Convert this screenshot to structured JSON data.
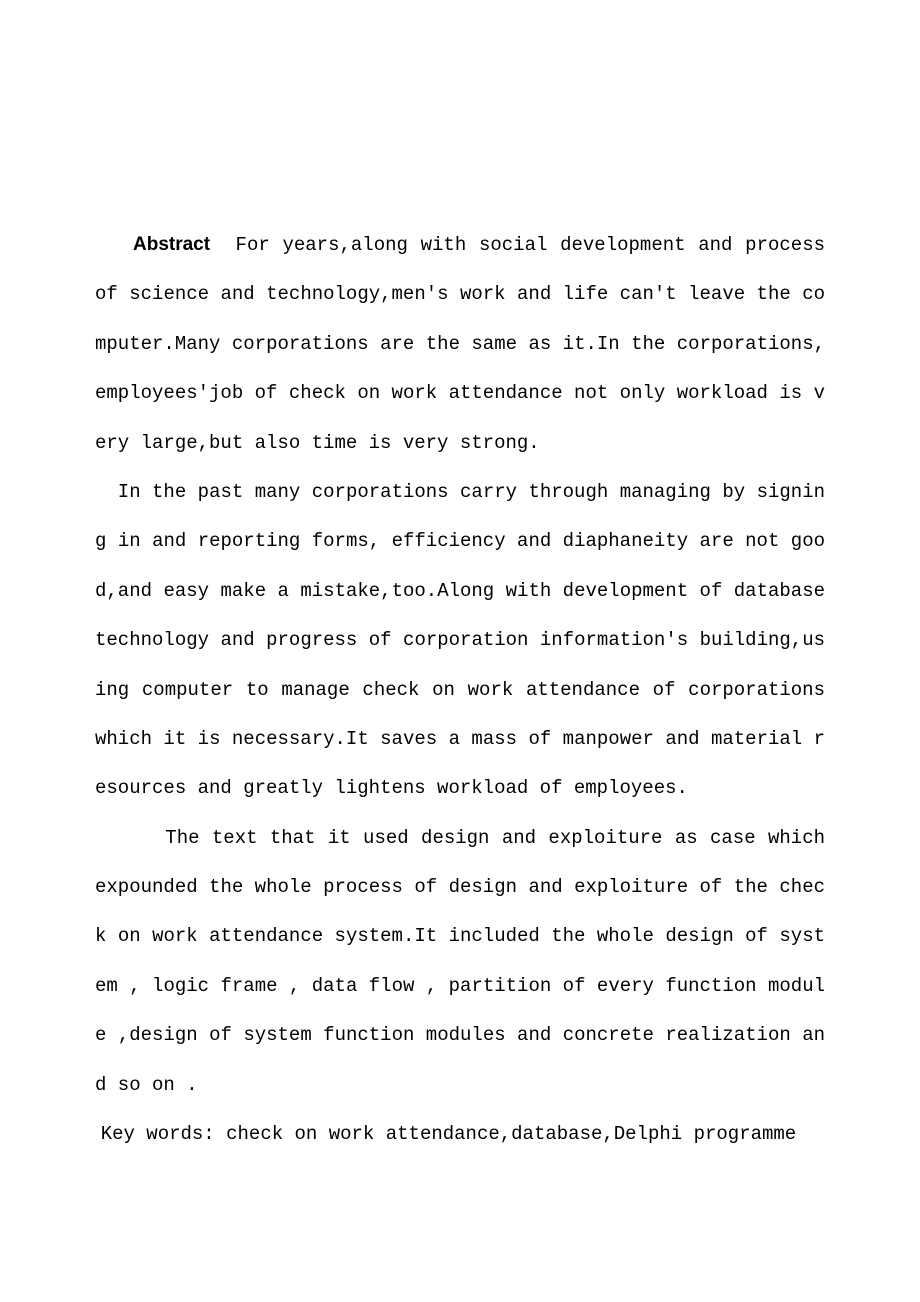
{
  "document": {
    "background_color": "#ffffff",
    "text_color": "#000000",
    "font_family": "SimSun, Courier New, monospace",
    "font_size": 19,
    "line_height": 2.6
  },
  "abstract": {
    "label": "Abstract",
    "label_font_weight": "bold",
    "paragraph1": "For years,along with social development and process of science and technology,men's work and life can't leave the computer.Many corporations are the same as it.In the corporations, employees'job of check on work attendance not only workload is very large,but also time is very strong.",
    "paragraph2": "In the past many corporations carry through managing by signing in and reporting forms, efficiency and diaphaneity are not good,and easy make a mistake,too.Along with development of database technology and progress of corporation information's building,using computer to manage check on work attendance of corporations which it is necessary.It saves a mass of manpower and material resources and greatly lightens workload of employees.",
    "paragraph3": "The text that it used design and exploiture as case which expounded the whole process of design and exploiture of the check on work attendance system.It included the whole design of system , logic frame , data flow , partition of every function module ,design of system function modules and concrete realization and so on ."
  },
  "keywords": {
    "full_text": "Key words: check on work attendance,database,Delphi programme"
  }
}
